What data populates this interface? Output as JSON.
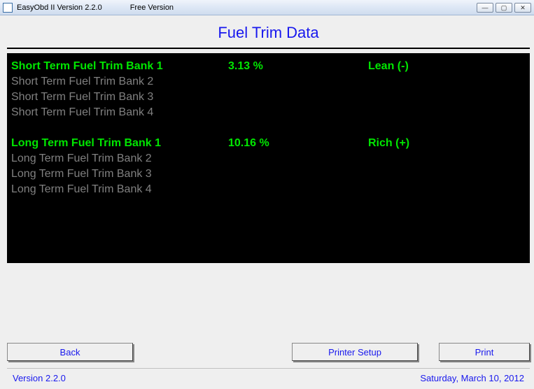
{
  "window": {
    "app_title": "EasyObd II Version 2.2.0",
    "edition": "Free Version"
  },
  "page": {
    "title": "Fuel Trim Data"
  },
  "short_term": [
    {
      "label": "Short Term Fuel Trim Bank 1",
      "value": "3.13 %",
      "status": "Lean (-)",
      "active": true
    },
    {
      "label": "Short Term Fuel Trim Bank 2",
      "value": "",
      "status": "",
      "active": false
    },
    {
      "label": "Short Term Fuel Trim Bank 3",
      "value": "",
      "status": "",
      "active": false
    },
    {
      "label": "Short Term Fuel Trim Bank 4",
      "value": "",
      "status": "",
      "active": false
    }
  ],
  "long_term": [
    {
      "label": "Long Term Fuel Trim Bank 1",
      "value": "10.16 %",
      "status": "Rich (+)",
      "active": true
    },
    {
      "label": "Long Term Fuel Trim Bank 2",
      "value": "",
      "status": "",
      "active": false
    },
    {
      "label": "Long Term Fuel Trim Bank 3",
      "value": "",
      "status": "",
      "active": false
    },
    {
      "label": "Long Term Fuel Trim Bank 4",
      "value": "",
      "status": "",
      "active": false
    }
  ],
  "buttons": {
    "back": "Back",
    "printer_setup": "Printer Setup",
    "print": "Print"
  },
  "footer": {
    "version": "Version 2.2.0",
    "date": "Saturday, March 10, 2012"
  },
  "colors": {
    "active_text": "#00e600",
    "inactive_text": "#808080",
    "panel_bg": "#000000",
    "accent_blue": "#1818ee",
    "app_bg": "#efefef"
  }
}
